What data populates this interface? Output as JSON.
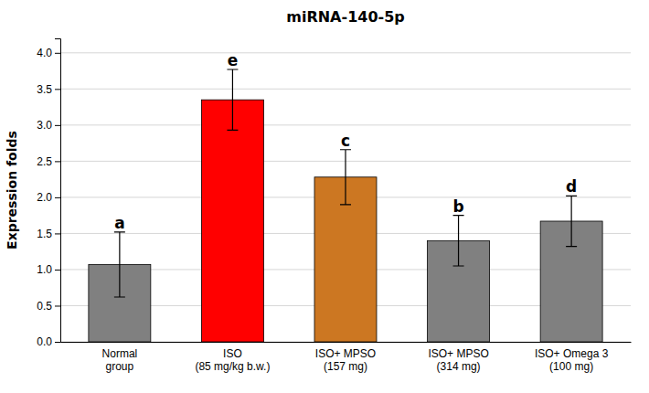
{
  "chart_data": {
    "type": "bar",
    "title": "miRNA-140-5p",
    "ylabel": "Expression folds",
    "categories": [
      "Normal\ngroup",
      "ISO\n(85 mg/kg b.w.)",
      "ISO+ MPSO\n(157 mg)",
      "ISO+ MPSO\n(314 mg)",
      "ISO+ Omega 3\n(100 mg)"
    ],
    "values": [
      1.07,
      3.35,
      2.28,
      1.4,
      1.67
    ],
    "errors": [
      0.45,
      0.42,
      0.38,
      0.35,
      0.35
    ],
    "letters": [
      "a",
      "e",
      "c",
      "b",
      "d"
    ],
    "colors": [
      "#808080",
      "#ff0000",
      "#cc7722",
      "#808080",
      "#808080"
    ],
    "ylim": [
      0,
      4.2
    ],
    "yticks": [
      {
        "value": 0,
        "label": "0.0"
      },
      0.5,
      {
        "value": 1.0,
        "label": "1.0"
      },
      1.5,
      {
        "value": 2.0,
        "label": "2.0"
      },
      2.5,
      {
        "value": 3.0,
        "label": "3.0"
      },
      3.5,
      {
        "value": 4.0,
        "label": "4.0"
      }
    ],
    "grid": true
  }
}
